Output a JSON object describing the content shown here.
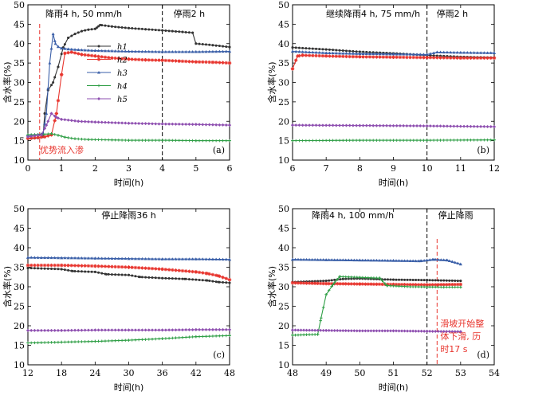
{
  "colors": {
    "h1": "#333333",
    "h2": "#e8352e",
    "h3": "#3a5fa8",
    "h4": "#2e9e45",
    "h5": "#8e4fb0",
    "red_marker": "#e8352e",
    "black_marker": "#000000"
  },
  "chart_data": [
    {
      "type": "line",
      "panel_label": "(a)",
      "xlabel": "时间(h)",
      "ylabel": "含水率(%)",
      "xlim": [
        0,
        6
      ],
      "ylim": [
        10,
        50
      ],
      "xticks": [
        0,
        1,
        2,
        3,
        4,
        5,
        6
      ],
      "yticks": [
        10,
        15,
        20,
        25,
        30,
        35,
        40,
        45,
        50
      ],
      "legend": {
        "position": "upper-left",
        "entries": [
          "h1",
          "h2",
          "h3",
          "h4",
          "h5"
        ]
      },
      "annotations": [
        {
          "text": "降雨4 h, 50 mm/h",
          "color": "black"
        },
        {
          "text": "停雨2 h",
          "color": "black"
        },
        {
          "text": "优势流入渗",
          "color": "red"
        }
      ],
      "vlines": [
        {
          "x": 0.35,
          "style": "red-dashed"
        },
        {
          "x": 4,
          "style": "black-dashed"
        }
      ],
      "series": [
        {
          "name": "h1",
          "x": [
            0,
            0.3,
            0.45,
            0.5,
            0.6,
            0.75,
            0.9,
            1.05,
            1.2,
            1.4,
            1.6,
            1.8,
            2.0,
            2.05,
            2.15,
            2.5,
            3.0,
            3.5,
            4.0,
            4.3,
            4.6,
            4.9,
            5.0,
            5.5,
            6.0
          ],
          "y": [
            15.5,
            15.7,
            16,
            22,
            28,
            30,
            34,
            39,
            41.5,
            42.5,
            43.2,
            43.6,
            43.8,
            44.1,
            44.8,
            44.4,
            44.0,
            43.7,
            43.4,
            43.2,
            43.0,
            42.8,
            40,
            39.6,
            39.1
          ]
        },
        {
          "name": "h2",
          "x": [
            0,
            0.3,
            0.5,
            0.7,
            0.85,
            1.0,
            1.1,
            1.3,
            1.6,
            2.0,
            2.5,
            3.0,
            3.5,
            4.0,
            4.5,
            5.0,
            5.5,
            6.0
          ],
          "y": [
            15.6,
            15.8,
            16,
            16.5,
            22,
            32,
            37.5,
            37.8,
            37.2,
            36.8,
            36.3,
            36,
            35.8,
            35.7,
            35.5,
            35.3,
            35.2,
            35.0
          ]
        },
        {
          "name": "h3",
          "x": [
            0,
            0.3,
            0.45,
            0.55,
            0.65,
            0.75,
            0.82,
            0.9,
            1.0,
            1.2,
            1.5,
            2.0,
            2.5,
            3.0,
            4.0,
            5.0,
            6.0
          ],
          "y": [
            16.5,
            16.6,
            16.8,
            22,
            35,
            42.5,
            40,
            39.2,
            38.8,
            38.6,
            38.4,
            38.2,
            38.1,
            38.0,
            37.9,
            37.9,
            38.0
          ]
        },
        {
          "name": "h4",
          "x": [
            0,
            0.4,
            0.7,
            0.9,
            1.1,
            1.4,
            1.8,
            2.5,
            3.0,
            4.0,
            5.0,
            6.0
          ],
          "y": [
            16.5,
            16.6,
            16.8,
            16.4,
            15.9,
            15.5,
            15.3,
            15.2,
            15.1,
            15.1,
            15.0,
            15.0
          ]
        },
        {
          "name": "h5",
          "x": [
            0,
            0.4,
            0.55,
            0.7,
            0.85,
            1.0,
            1.5,
            2.0,
            3.0,
            4.0,
            5.0,
            6.0
          ],
          "y": [
            16,
            16.5,
            19,
            22,
            21,
            20.5,
            20,
            19.8,
            19.5,
            19.3,
            19.2,
            19.0
          ]
        }
      ]
    },
    {
      "type": "line",
      "panel_label": "(b)",
      "xlabel": "时间(h)",
      "ylabel": "含水率(%)",
      "xlim": [
        6,
        12
      ],
      "ylim": [
        10,
        50
      ],
      "xticks": [
        6,
        7,
        8,
        9,
        10,
        11,
        12
      ],
      "yticks": [
        10,
        15,
        20,
        25,
        30,
        35,
        40,
        45,
        50
      ],
      "annotations": [
        {
          "text": "继续降雨4 h, 75 mm/h",
          "color": "black"
        },
        {
          "text": "停雨2 h",
          "color": "black"
        }
      ],
      "vlines": [
        {
          "x": 10,
          "style": "black-dashed"
        }
      ],
      "series": [
        {
          "name": "h1",
          "x": [
            6,
            7,
            8,
            9,
            10,
            11,
            12
          ],
          "y": [
            39.0,
            38.5,
            37.9,
            37.5,
            37.0,
            36.6,
            36.4
          ]
        },
        {
          "name": "h2",
          "x": [
            6,
            6.15,
            6.3,
            7,
            8,
            9,
            10,
            11,
            12
          ],
          "y": [
            33.5,
            36.8,
            37.0,
            36.8,
            36.6,
            36.5,
            36.4,
            36.3,
            36.3
          ]
        },
        {
          "name": "h3",
          "x": [
            6,
            7,
            8,
            9,
            10,
            10.3,
            11,
            12
          ],
          "y": [
            38.0,
            37.6,
            37.4,
            37.3,
            37.2,
            37.8,
            37.7,
            37.6
          ]
        },
        {
          "name": "h4",
          "x": [
            6,
            8,
            10,
            12
          ],
          "y": [
            15.0,
            15.1,
            15.1,
            15.2
          ]
        },
        {
          "name": "h5",
          "x": [
            6,
            8,
            10,
            12
          ],
          "y": [
            19.0,
            18.9,
            18.8,
            18.6
          ]
        }
      ]
    },
    {
      "type": "line",
      "panel_label": "(c)",
      "xlabel": "时间(h)",
      "ylabel": "含水率(%)",
      "xlim": [
        12,
        48
      ],
      "ylim": [
        10,
        50
      ],
      "xticks": [
        12,
        18,
        24,
        30,
        36,
        42,
        48
      ],
      "yticks": [
        10,
        15,
        20,
        25,
        30,
        35,
        40,
        45,
        50
      ],
      "annotations": [
        {
          "text": "停止降雨36 h",
          "color": "black"
        }
      ],
      "vlines": [],
      "series": [
        {
          "name": "h1",
          "x": [
            12,
            18,
            20,
            24,
            26,
            30,
            32,
            36,
            40,
            44,
            46,
            48
          ],
          "y": [
            34.8,
            34.5,
            34.0,
            33.8,
            33.2,
            33.0,
            32.5,
            32.2,
            32.0,
            31.6,
            31.2,
            31.0
          ]
        },
        {
          "name": "h2",
          "x": [
            12,
            18,
            24,
            30,
            36,
            42,
            44,
            46,
            48
          ],
          "y": [
            35.5,
            35.5,
            35.3,
            35.0,
            34.5,
            33.8,
            33.4,
            32.8,
            31.8
          ]
        },
        {
          "name": "h3",
          "x": [
            12,
            18,
            24,
            30,
            36,
            42,
            48
          ],
          "y": [
            37.5,
            37.4,
            37.3,
            37.2,
            37.1,
            37.1,
            37.0
          ]
        },
        {
          "name": "h4",
          "x": [
            12,
            18,
            24,
            30,
            36,
            42,
            48
          ],
          "y": [
            15.6,
            15.8,
            16.0,
            16.3,
            16.7,
            17.2,
            17.5
          ]
        },
        {
          "name": "h5",
          "x": [
            12,
            18,
            24,
            30,
            36,
            42,
            48
          ],
          "y": [
            18.8,
            18.8,
            18.9,
            18.9,
            18.9,
            19.0,
            19.0
          ]
        }
      ]
    },
    {
      "type": "line",
      "panel_label": "(d)",
      "xlabel": "时间(h)",
      "ylabel": "含水率(%)",
      "xlim": [
        48,
        54
      ],
      "ylim": [
        10,
        50
      ],
      "xticks": [
        48,
        49,
        50,
        51,
        52,
        53,
        54
      ],
      "yticks": [
        10,
        15,
        20,
        25,
        30,
        35,
        40,
        45,
        50
      ],
      "annotations": [
        {
          "text": "降雨4 h, 100 mm/h",
          "color": "black"
        },
        {
          "text": "停止降雨",
          "color": "black"
        },
        {
          "text": "滑坡开始整",
          "color": "red"
        },
        {
          "text": "体下滑, 历",
          "color": "red"
        },
        {
          "text": "时17 s",
          "color": "red"
        }
      ],
      "vlines": [
        {
          "x": 52,
          "style": "black-dashed"
        },
        {
          "x": 52.3,
          "style": "red-dashed"
        }
      ],
      "series": [
        {
          "name": "h1",
          "x": [
            48,
            49,
            49.5,
            50,
            51,
            52,
            53
          ],
          "y": [
            31.2,
            31.5,
            32.0,
            32.1,
            31.8,
            31.7,
            31.5
          ]
        },
        {
          "name": "h2",
          "x": [
            48,
            49,
            50,
            51,
            52,
            53
          ],
          "y": [
            31.0,
            30.8,
            30.7,
            30.6,
            30.5,
            30.6
          ]
        },
        {
          "name": "h3",
          "x": [
            48,
            49,
            50,
            51,
            51.8,
            52.2,
            52.6,
            53
          ],
          "y": [
            37.0,
            36.9,
            36.8,
            36.7,
            36.6,
            37.0,
            36.8,
            35.8
          ]
        },
        {
          "name": "h4",
          "x": [
            48,
            48.75,
            48.85,
            49.0,
            49.2,
            49.4,
            50.0,
            50.6,
            50.8,
            51.5,
            52.5,
            53
          ],
          "y": [
            17.6,
            17.8,
            22,
            28,
            30.5,
            32.6,
            32.4,
            32.2,
            30.3,
            30.0,
            29.9,
            29.9
          ]
        },
        {
          "name": "h5",
          "x": [
            48,
            49,
            50,
            51,
            52,
            53
          ],
          "y": [
            18.9,
            18.8,
            18.7,
            18.7,
            18.6,
            18.5
          ]
        }
      ]
    }
  ]
}
